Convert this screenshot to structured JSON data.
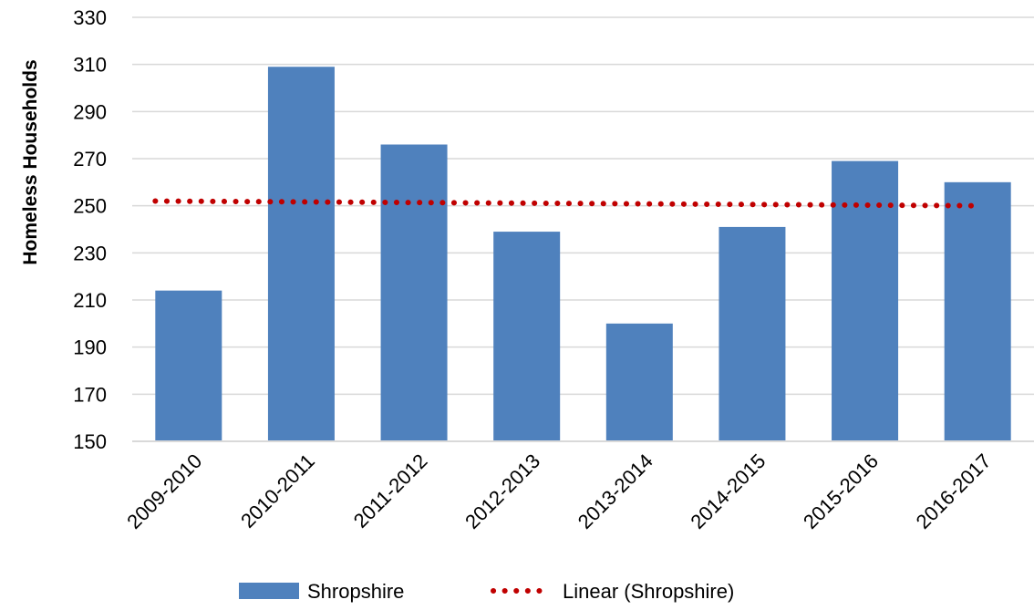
{
  "chart_data": {
    "type": "bar",
    "title": "",
    "xlabel": "",
    "ylabel": "Homeless Households",
    "ylim": [
      150,
      330
    ],
    "y_ticks": [
      150,
      170,
      190,
      210,
      230,
      250,
      270,
      290,
      310,
      330
    ],
    "categories": [
      "2009-2010",
      "2010-2011",
      "2011-2012",
      "2012-2013",
      "2013-2014",
      "2014-2015",
      "2015-2016",
      "2016-2017"
    ],
    "series": [
      {
        "name": "Shropshire",
        "type": "bar",
        "color": "#4F81BD",
        "values": [
          214,
          309,
          276,
          239,
          200,
          241,
          269,
          260
        ]
      }
    ],
    "trendline": {
      "name": "Linear (Shropshire)",
      "type": "linear",
      "style": "dotted",
      "color": "#C00000",
      "start_value": 252,
      "end_value": 250
    },
    "grid": true,
    "grid_color": "#D9D9D9",
    "legend": "bottom-center"
  }
}
